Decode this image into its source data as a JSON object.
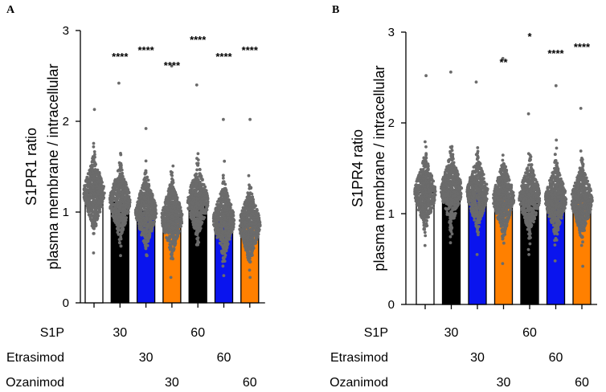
{
  "chart_data": [
    {
      "panel": "A",
      "type": "bar",
      "ylabel_line1": "S1PR1 ratio",
      "ylabel_line2": "plasma membrane / intracellular",
      "ylim": [
        0,
        3
      ],
      "yticks": [
        "0",
        "1",
        "2",
        "3"
      ],
      "bars": [
        {
          "value": 1.21,
          "color": "#ffffff",
          "sig": "",
          "spread_min": 0.55,
          "spread_max": 2.13
        },
        {
          "value": 1.11,
          "color": "#000000",
          "sig": "****",
          "spread_min": 0.52,
          "spread_max": 2.42
        },
        {
          "value": 1.01,
          "color": "#0a14ee",
          "sig": "****",
          "spread_min": 0.52,
          "spread_max": 1.92
        },
        {
          "value": 0.94,
          "color": "#ff8000",
          "sig": "****",
          "spread_min": 0.28,
          "spread_max": 2.61
        },
        {
          "value": 1.11,
          "color": "#000000",
          "sig": "****",
          "spread_min": 0.64,
          "spread_max": 2.4
        },
        {
          "value": 0.91,
          "color": "#0a14ee",
          "sig": "****",
          "spread_min": 0.3,
          "spread_max": 2.02
        },
        {
          "value": 0.86,
          "color": "#ff8000",
          "sig": "****",
          "spread_min": 0.28,
          "spread_max": 2.02
        }
      ]
    },
    {
      "panel": "B",
      "type": "bar",
      "ylabel_line1": "S1PR4 ratio",
      "ylabel_line2": "plasma membrane / intracellular",
      "ylim": [
        0,
        3
      ],
      "yticks": [
        "0",
        "1",
        "2",
        "3"
      ],
      "bars": [
        {
          "value": 1.23,
          "color": "#ffffff",
          "sig": "",
          "spread_min": 0.65,
          "spread_max": 2.52
        },
        {
          "value": 1.26,
          "color": "#000000",
          "sig": "",
          "spread_min": 0.68,
          "spread_max": 2.56
        },
        {
          "value": 1.23,
          "color": "#0a14ee",
          "sig": "",
          "spread_min": 0.55,
          "spread_max": 2.45
        },
        {
          "value": 1.17,
          "color": "#ff8000",
          "sig": "**",
          "spread_min": 0.45,
          "spread_max": 2.71
        },
        {
          "value": 1.18,
          "color": "#000000",
          "sig": "*",
          "spread_min": 0.55,
          "spread_max": 2.1
        },
        {
          "value": 1.16,
          "color": "#0a14ee",
          "sig": "****",
          "spread_min": 0.48,
          "spread_max": 2.41
        },
        {
          "value": 1.15,
          "color": "#ff8000",
          "sig": "****",
          "spread_min": 0.42,
          "spread_max": 2.16
        }
      ]
    }
  ],
  "conditions": [
    {
      "label": "S1P",
      "values": [
        "",
        "30",
        "",
        "",
        "60",
        "",
        ""
      ]
    },
    {
      "label": "Etrasimod",
      "values": [
        "",
        "",
        "30",
        "",
        "",
        "60",
        ""
      ]
    },
    {
      "label": "Ozanimod",
      "values": [
        "",
        "",
        "",
        "30",
        "",
        "",
        "60"
      ]
    }
  ],
  "colors": {
    "dots": "#6b6b6b",
    "axis": "#000000"
  }
}
